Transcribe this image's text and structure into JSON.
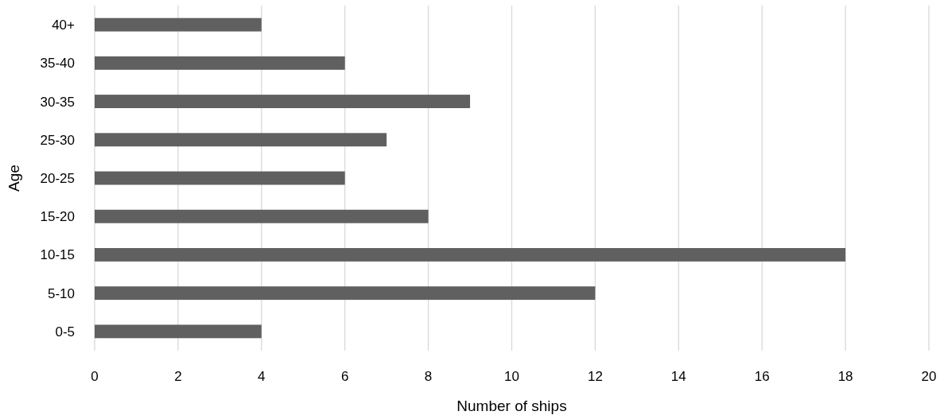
{
  "chart_data": {
    "type": "bar",
    "orientation": "horizontal",
    "xlabel": "Number of ships",
    "ylabel": "Age",
    "categories": [
      "40+",
      "35-40",
      "30-35",
      "25-30",
      "20-25",
      "15-20",
      "10-15",
      "5-10",
      "0-5"
    ],
    "values": [
      4,
      6,
      9,
      7,
      6,
      8,
      18,
      12,
      4
    ],
    "color": "#606060",
    "xlim": [
      0,
      20
    ],
    "xticks": [
      0,
      2,
      4,
      6,
      8,
      10,
      12,
      14,
      16,
      18,
      20
    ],
    "grid": "x"
  }
}
